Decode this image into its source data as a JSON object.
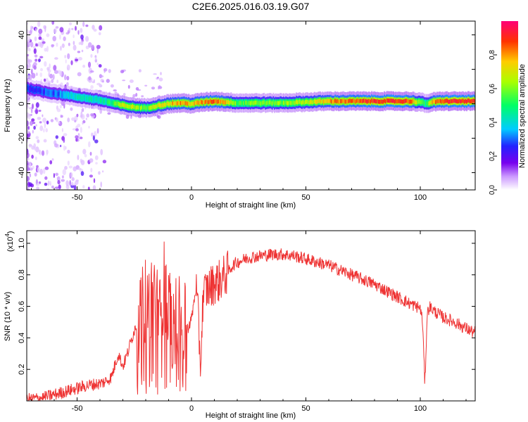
{
  "title": "C2E6.2025.016.03.19.G07",
  "colors": {
    "snr_line": "#ee3333",
    "line_ridge": "#e8334a"
  },
  "chart_data": [
    {
      "type": "heatmap",
      "title": "",
      "xlabel": "Height of straight line (km)",
      "ylabel": "Frequency (Hz)",
      "xlim": [
        -72,
        124
      ],
      "ylim": [
        -50,
        48
      ],
      "xticks": [
        -50,
        0,
        50,
        100
      ],
      "yticks": [
        -40,
        -20,
        0,
        20,
        40
      ],
      "xtick_labels": [
        "-50",
        "0",
        "50",
        "100"
      ],
      "ytick_labels": [
        "-40",
        "-20",
        "0",
        "20",
        "40"
      ],
      "ridge": {
        "x": [
          -72,
          -65,
          -60,
          -55,
          -50,
          -45,
          -40,
          -35,
          -30,
          -25,
          -20,
          -15,
          -10,
          -5,
          0,
          5,
          10,
          15,
          20,
          30,
          40,
          50,
          60,
          70,
          80,
          90,
          95,
          100,
          102,
          105,
          110,
          124
        ],
        "freq": [
          9,
          7,
          6,
          5,
          4,
          3,
          2,
          0.5,
          -1,
          -2,
          -2.5,
          -1,
          0,
          0.5,
          0,
          1,
          1.5,
          1,
          0.5,
          0.5,
          0.5,
          1,
          1.5,
          1.5,
          1.5,
          1.5,
          1.5,
          1,
          0,
          1,
          1.5,
          1.5
        ],
        "amplitude": [
          0.25,
          0.3,
          0.3,
          0.35,
          0.4,
          0.45,
          0.45,
          0.5,
          0.7,
          0.65,
          0.55,
          0.7,
          0.75,
          0.8,
          0.75,
          0.8,
          0.85,
          0.75,
          0.55,
          0.6,
          0.6,
          0.65,
          0.8,
          0.85,
          0.9,
          0.9,
          0.85,
          0.6,
          0.45,
          0.8,
          0.9,
          0.92
        ]
      },
      "colorbar": {
        "label": "Normalized spectral amplitude",
        "range": [
          0,
          1
        ],
        "ticks": [
          0.0,
          0.2,
          0.4,
          0.6,
          0.8
        ],
        "tick_labels": [
          "0.0",
          "0.2",
          "0.4",
          "0.6",
          "0.8"
        ]
      }
    },
    {
      "type": "line",
      "title": "",
      "xlabel": "Height of straight line (km)",
      "ylabel": "SNR (10 * v/v)",
      "y_multiplier": "(x10",
      "y_multiplier_exp": "4",
      "y_multiplier_close": ")",
      "xlim": [
        -72,
        124
      ],
      "ylim": [
        0,
        1.08
      ],
      "xticks": [
        -50,
        0,
        50,
        100
      ],
      "yticks": [
        0.2,
        0.4,
        0.6,
        0.8,
        1.0
      ],
      "xtick_labels": [
        "-50",
        "0",
        "50",
        "100"
      ],
      "ytick_labels": [
        "0.2",
        "0.4",
        "0.6",
        "0.8",
        "1.0"
      ],
      "series": [
        {
          "x": [
            -72,
            -65,
            -60,
            -55,
            -50,
            -45,
            -40,
            -38,
            -35,
            -33,
            -32,
            -30,
            -28,
            -25,
            -22,
            -20,
            -18,
            -16,
            -14,
            -12,
            -10,
            -8,
            -6,
            -4,
            -2,
            0,
            2,
            3,
            4,
            5,
            6,
            8,
            10,
            12,
            15,
            18,
            20,
            25,
            30,
            35,
            40,
            45,
            50,
            55,
            60,
            65,
            70,
            75,
            80,
            85,
            90,
            95,
            98,
            100,
            101,
            102,
            103,
            104,
            106,
            110,
            115,
            120,
            124
          ],
          "y": [
            0.01,
            0.02,
            0.04,
            0.06,
            0.08,
            0.1,
            0.11,
            0.12,
            0.15,
            0.25,
            0.3,
            0.22,
            0.3,
            0.45,
            0.55,
            0.65,
            0.6,
            0.7,
            0.5,
            0.75,
            0.6,
            0.65,
            0.55,
            0.5,
            0.45,
            0.52,
            0.72,
            0.5,
            0.22,
            0.65,
            0.7,
            0.72,
            0.75,
            0.76,
            0.8,
            0.86,
            0.88,
            0.91,
            0.92,
            0.93,
            0.93,
            0.92,
            0.9,
            0.88,
            0.86,
            0.83,
            0.8,
            0.77,
            0.74,
            0.7,
            0.66,
            0.62,
            0.6,
            0.59,
            0.5,
            0.1,
            0.55,
            0.6,
            0.57,
            0.53,
            0.5,
            0.46,
            0.43
          ]
        }
      ]
    }
  ]
}
